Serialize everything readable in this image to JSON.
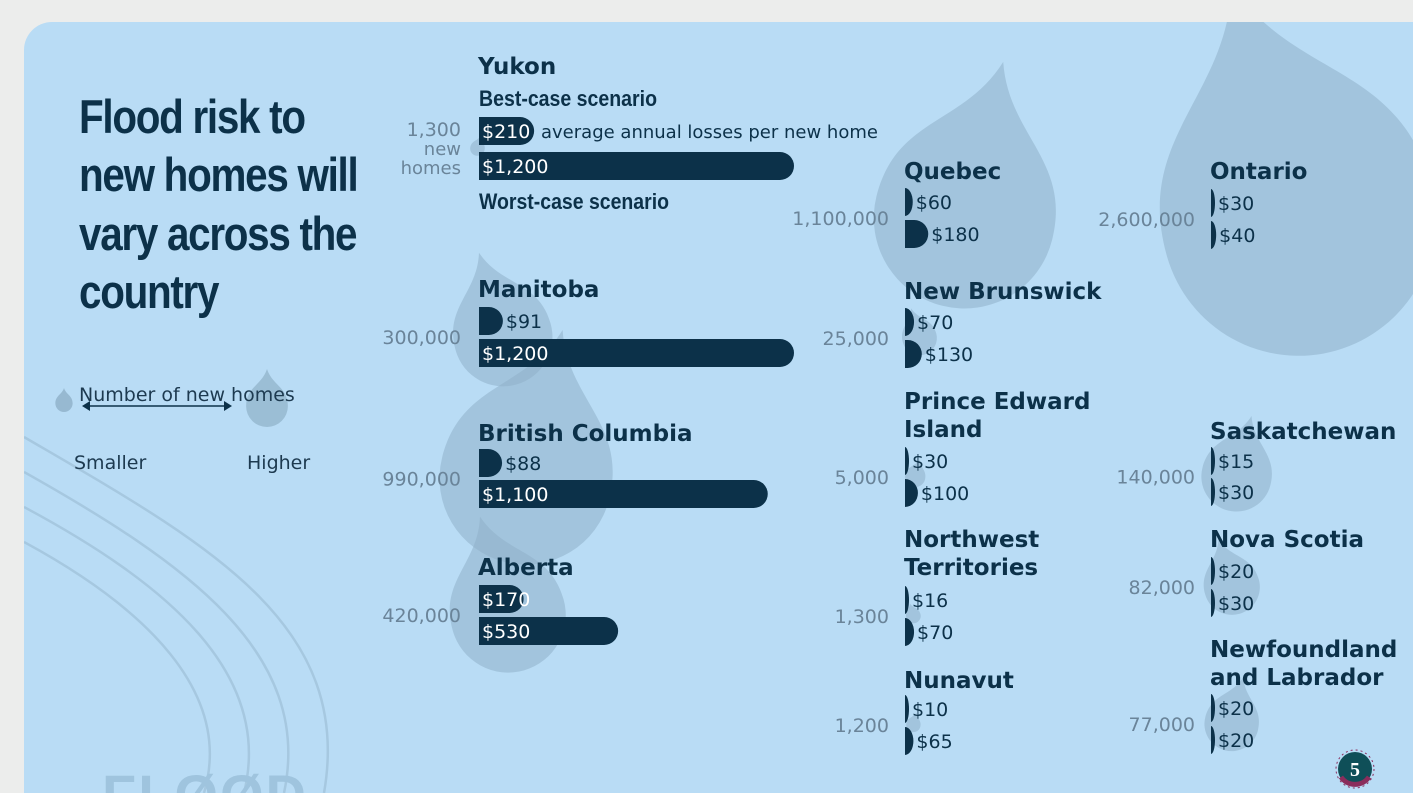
{
  "title": "Flood risk to new homes will vary across the country",
  "legend": {
    "title": "Number of new homes",
    "small": "Smaller",
    "high": "Higher"
  },
  "watermark": "FLØØD",
  "logo_number": "5",
  "colors": {
    "background": "#b9dcf5",
    "bar": "#0c3149",
    "drop": "#8fb0c8",
    "text": "#0c3149",
    "count": "#6a8499"
  },
  "chart_data": {
    "type": "bar",
    "unit": "average annual losses per new home",
    "series": [
      {
        "name": "Best-case scenario"
      },
      {
        "name": "Worst-case scenario"
      }
    ],
    "annotation": "average annual losses per new home",
    "homes_suffix": "new homes",
    "regions": [
      {
        "name": "Yukon",
        "homes": "1,300",
        "homes_value": 1300,
        "best": 210,
        "worst": 1200,
        "best_label": "$210",
        "worst_label": "$1,200"
      },
      {
        "name": "Manitoba",
        "homes": "300,000",
        "homes_value": 300000,
        "best": 91,
        "worst": 1200,
        "best_label": "$91",
        "worst_label": "$1,200"
      },
      {
        "name": "British Columbia",
        "homes": "990,000",
        "homes_value": 990000,
        "best": 88,
        "worst": 1100,
        "best_label": "$88",
        "worst_label": "$1,100"
      },
      {
        "name": "Alberta",
        "homes": "420,000",
        "homes_value": 420000,
        "best": 170,
        "worst": 530,
        "best_label": "$170",
        "worst_label": "$530"
      },
      {
        "name": "Quebec",
        "homes": "1,100,000",
        "homes_value": 1100000,
        "best": 60,
        "worst": 180,
        "best_label": "$60",
        "worst_label": "$180"
      },
      {
        "name": "New Brunswick",
        "homes": "25,000",
        "homes_value": 25000,
        "best": 70,
        "worst": 130,
        "best_label": "$70",
        "worst_label": "$130"
      },
      {
        "name": "Prince Edward Island",
        "homes": "5,000",
        "homes_value": 5000,
        "best": 30,
        "worst": 100,
        "best_label": "$30",
        "worst_label": "$100"
      },
      {
        "name": "Northwest Territories",
        "homes": "1,300",
        "homes_value": 1300,
        "best": 16,
        "worst": 70,
        "best_label": "$16",
        "worst_label": "$70"
      },
      {
        "name": "Nunavut",
        "homes": "1,200",
        "homes_value": 1200,
        "best": 10,
        "worst": 65,
        "best_label": "$10",
        "worst_label": "$65"
      },
      {
        "name": "Ontario",
        "homes": "2,600,000",
        "homes_value": 2600000,
        "best": 30,
        "worst": 40,
        "best_label": "$30",
        "worst_label": "$40"
      },
      {
        "name": "Saskatchewan",
        "homes": "140,000",
        "homes_value": 140000,
        "best": 15,
        "worst": 30,
        "best_label": "$15",
        "worst_label": "$30"
      },
      {
        "name": "Nova Scotia",
        "homes": "82,000",
        "homes_value": 82000,
        "best": 20,
        "worst": 30,
        "best_label": "$20",
        "worst_label": "$30"
      },
      {
        "name": "Newfoundland and Labrador",
        "homes": "77,000",
        "homes_value": 77000,
        "best": 20,
        "worst": 20,
        "best_label": "$20",
        "worst_label": "$20"
      }
    ]
  }
}
